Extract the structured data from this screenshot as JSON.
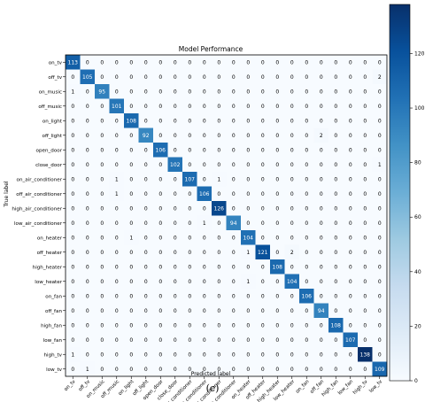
{
  "chart_data": {
    "type": "heatmap",
    "title": "Model Performance",
    "xlabel": "Predicted label",
    "ylabel": "True label",
    "labels": [
      "on_tv",
      "off_tv",
      "on_music",
      "off_music",
      "on_light",
      "off_light",
      "open_door",
      "close_door",
      "on_air_conditioner",
      "off_air_conditioner",
      "high_air_conditioner",
      "low_air_conditioner",
      "on_heater",
      "off_heater",
      "high_heater",
      "low_heater",
      "on_fan",
      "off_fan",
      "high_fan",
      "low_fan",
      "high_tv",
      "low_tv"
    ],
    "matrix": [
      [
        113,
        0,
        0,
        0,
        0,
        0,
        0,
        0,
        0,
        0,
        0,
        0,
        0,
        0,
        0,
        0,
        0,
        0,
        0,
        0,
        0,
        0
      ],
      [
        0,
        105,
        0,
        0,
        0,
        0,
        0,
        0,
        0,
        0,
        0,
        0,
        0,
        0,
        0,
        0,
        0,
        0,
        0,
        0,
        0,
        2
      ],
      [
        1,
        0,
        95,
        0,
        0,
        0,
        0,
        0,
        0,
        0,
        0,
        0,
        0,
        0,
        0,
        0,
        0,
        0,
        0,
        0,
        0,
        0
      ],
      [
        0,
        0,
        0,
        101,
        0,
        0,
        0,
        0,
        0,
        0,
        0,
        0,
        0,
        0,
        0,
        0,
        0,
        0,
        0,
        0,
        0,
        0
      ],
      [
        0,
        0,
        0,
        0,
        108,
        0,
        0,
        0,
        0,
        0,
        0,
        0,
        0,
        0,
        0,
        0,
        0,
        0,
        0,
        0,
        0,
        0
      ],
      [
        0,
        0,
        0,
        0,
        0,
        92,
        0,
        0,
        0,
        0,
        0,
        0,
        0,
        0,
        0,
        0,
        0,
        2,
        0,
        0,
        0,
        0
      ],
      [
        0,
        0,
        0,
        0,
        0,
        0,
        106,
        0,
        0,
        0,
        0,
        0,
        0,
        0,
        0,
        0,
        0,
        0,
        0,
        0,
        0,
        0
      ],
      [
        0,
        0,
        0,
        0,
        0,
        0,
        0,
        102,
        0,
        0,
        0,
        0,
        0,
        0,
        0,
        0,
        0,
        0,
        0,
        0,
        0,
        1
      ],
      [
        0,
        0,
        0,
        1,
        0,
        0,
        0,
        0,
        107,
        0,
        1,
        0,
        0,
        0,
        0,
        0,
        0,
        0,
        0,
        0,
        0,
        0
      ],
      [
        0,
        0,
        0,
        1,
        0,
        0,
        0,
        0,
        0,
        106,
        0,
        0,
        0,
        0,
        0,
        0,
        0,
        0,
        0,
        0,
        0,
        0
      ],
      [
        0,
        0,
        0,
        0,
        0,
        0,
        0,
        0,
        0,
        0,
        126,
        0,
        0,
        0,
        0,
        0,
        0,
        0,
        0,
        0,
        0,
        0
      ],
      [
        0,
        0,
        0,
        0,
        0,
        0,
        0,
        0,
        0,
        1,
        0,
        94,
        0,
        0,
        0,
        0,
        0,
        0,
        0,
        0,
        0,
        0
      ],
      [
        0,
        0,
        0,
        0,
        1,
        0,
        0,
        0,
        0,
        0,
        0,
        0,
        104,
        0,
        0,
        0,
        0,
        0,
        0,
        0,
        0,
        0
      ],
      [
        0,
        0,
        0,
        0,
        0,
        0,
        0,
        0,
        0,
        0,
        0,
        0,
        1,
        121,
        0,
        2,
        0,
        0,
        0,
        0,
        0,
        0
      ],
      [
        0,
        0,
        0,
        0,
        0,
        0,
        0,
        0,
        0,
        0,
        0,
        0,
        0,
        0,
        108,
        0,
        0,
        0,
        0,
        0,
        0,
        0
      ],
      [
        0,
        0,
        0,
        0,
        0,
        0,
        0,
        0,
        0,
        0,
        0,
        0,
        1,
        0,
        0,
        104,
        0,
        0,
        0,
        0,
        0,
        0
      ],
      [
        0,
        0,
        0,
        0,
        0,
        0,
        0,
        0,
        0,
        0,
        0,
        0,
        0,
        0,
        0,
        0,
        106,
        0,
        0,
        0,
        0,
        0
      ],
      [
        0,
        0,
        0,
        0,
        0,
        0,
        0,
        0,
        0,
        0,
        0,
        0,
        0,
        0,
        0,
        0,
        0,
        94,
        0,
        0,
        0,
        0
      ],
      [
        0,
        0,
        0,
        0,
        0,
        0,
        0,
        0,
        0,
        0,
        0,
        0,
        0,
        0,
        0,
        0,
        0,
        0,
        108,
        0,
        0,
        0
      ],
      [
        0,
        0,
        0,
        0,
        0,
        0,
        0,
        0,
        0,
        0,
        0,
        0,
        0,
        0,
        0,
        0,
        0,
        0,
        0,
        107,
        0,
        0
      ],
      [
        1,
        0,
        0,
        0,
        0,
        0,
        0,
        0,
        0,
        0,
        0,
        0,
        0,
        0,
        0,
        0,
        0,
        0,
        0,
        0,
        138,
        0
      ],
      [
        0,
        1,
        0,
        0,
        0,
        0,
        0,
        0,
        0,
        0,
        0,
        0,
        0,
        0,
        0,
        0,
        0,
        0,
        0,
        0,
        0,
        109
      ]
    ],
    "colorbar": {
      "vmin": 0,
      "vmax": 138,
      "ticks": [
        0,
        20,
        40,
        60,
        80,
        100,
        120
      ],
      "colormap": "Blues"
    }
  },
  "caption": "(c)"
}
